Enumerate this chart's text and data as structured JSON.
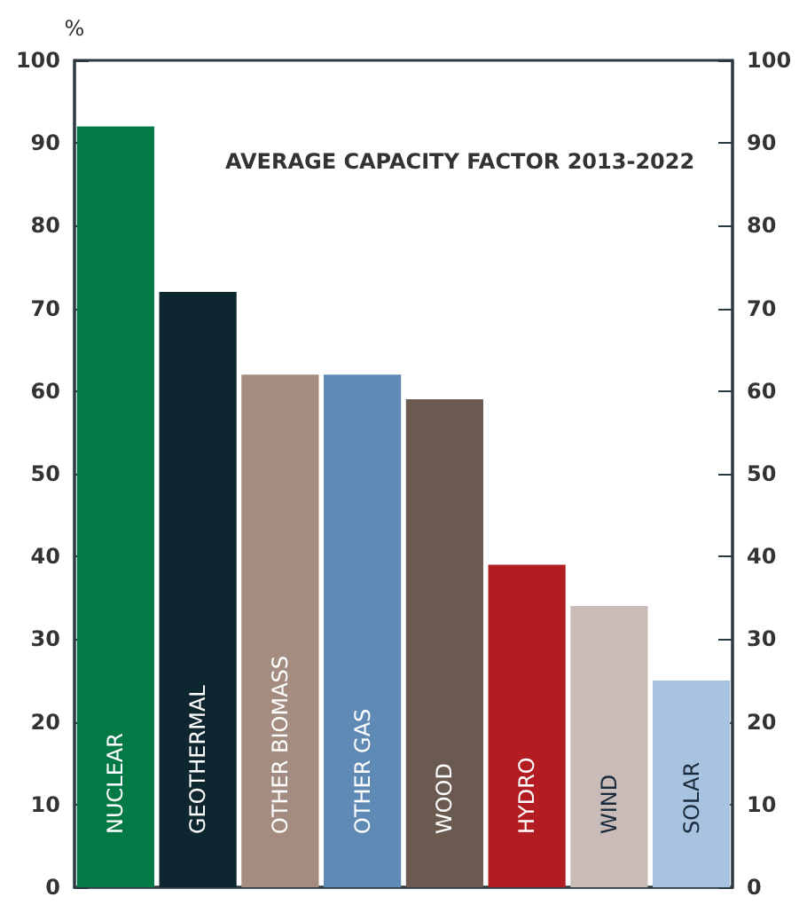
{
  "chart_data": {
    "type": "bar",
    "title": "AVERAGE CAPACITY FACTOR 2013-2022",
    "ylabel": "%",
    "categories": [
      "NUCLEAR",
      "GEOTHERMAL",
      "OTHER BIOMASS",
      "OTHER GAS",
      "WOOD",
      "HYDRO",
      "WIND",
      "SOLAR"
    ],
    "values": [
      92,
      72,
      62,
      62,
      59,
      39,
      34,
      25
    ],
    "colors": [
      "#037a45",
      "#0e2630",
      "#a48c80",
      "#5f8ab6",
      "#6a5a4f",
      "#b31d22",
      "#c9bcb8",
      "#a7c3e0"
    ],
    "ylim": [
      0,
      100
    ],
    "yticks": [
      0,
      10,
      20,
      30,
      40,
      50,
      60,
      70,
      80,
      90,
      100
    ],
    "y2lim": [
      0,
      100
    ],
    "y2ticks": [
      0,
      10,
      20,
      30,
      40,
      50,
      60,
      70,
      80,
      90,
      100
    ],
    "grid": false
  }
}
